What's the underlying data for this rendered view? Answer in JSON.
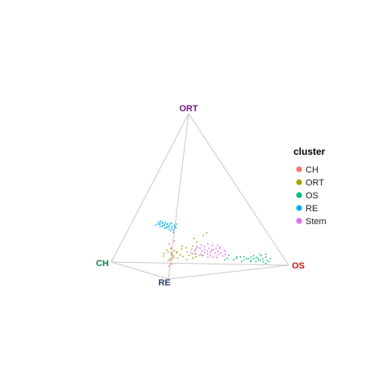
{
  "chart_data": {
    "type": "scatter",
    "plot_kind": "3D tetrahedron (quaternary) point cloud",
    "vertices": [
      {
        "name": "ORT",
        "color": "#6a1b7a"
      },
      {
        "name": "CH",
        "color": "#1a7a4a"
      },
      {
        "name": "OS",
        "color": "#cc1111"
      },
      {
        "name": "RE",
        "color": "#2b3d6e"
      }
    ],
    "legend": {
      "title": "cluster",
      "placement": "right",
      "items": [
        {
          "name": "CH",
          "color": "#F8766D"
        },
        {
          "name": "ORT",
          "color": "#A3A500"
        },
        {
          "name": "OS",
          "color": "#00BF7D"
        },
        {
          "name": "RE",
          "color": "#00B0F6"
        },
        {
          "name": "Stem",
          "color": "#E76BF3"
        }
      ]
    },
    "series": [
      {
        "name": "CH",
        "points": [
          [
            0.15,
            0.05,
            0.03,
            0.77
          ],
          [
            0.1,
            0.08,
            0.02,
            0.8
          ],
          [
            0.12,
            0.05,
            0.05,
            0.78
          ],
          [
            0.18,
            0.06,
            0.02,
            0.74
          ],
          [
            0.08,
            0.06,
            0.04,
            0.82
          ],
          [
            0.14,
            0.09,
            0.04,
            0.73
          ],
          [
            0.1,
            0.1,
            0.06,
            0.74
          ],
          [
            0.2,
            0.1,
            0.02,
            0.68
          ],
          [
            0.22,
            0.06,
            0.04,
            0.68
          ],
          [
            0.06,
            0.12,
            0.05,
            0.77
          ],
          [
            0.12,
            0.12,
            0.08,
            0.68
          ],
          [
            0.15,
            0.04,
            0.06,
            0.75
          ]
        ]
      },
      {
        "name": "ORT",
        "points": [
          [
            0.06,
            0.55,
            0.35,
            0.04
          ],
          [
            0.04,
            0.6,
            0.31,
            0.05
          ],
          [
            0.08,
            0.5,
            0.38,
            0.04
          ],
          [
            0.05,
            0.65,
            0.26,
            0.04
          ],
          [
            0.1,
            0.52,
            0.34,
            0.04
          ],
          [
            0.06,
            0.58,
            0.3,
            0.06
          ],
          [
            0.03,
            0.62,
            0.3,
            0.05
          ],
          [
            0.07,
            0.47,
            0.41,
            0.05
          ],
          [
            0.12,
            0.5,
            0.33,
            0.05
          ],
          [
            0.05,
            0.54,
            0.37,
            0.04
          ],
          [
            0.08,
            0.6,
            0.27,
            0.05
          ],
          [
            0.04,
            0.57,
            0.34,
            0.05
          ],
          [
            0.1,
            0.45,
            0.39,
            0.06
          ],
          [
            0.06,
            0.5,
            0.4,
            0.04
          ],
          [
            0.09,
            0.56,
            0.3,
            0.05
          ],
          [
            0.03,
            0.53,
            0.4,
            0.04
          ],
          [
            0.07,
            0.63,
            0.25,
            0.05
          ],
          [
            0.11,
            0.48,
            0.36,
            0.05
          ],
          [
            0.05,
            0.46,
            0.44,
            0.05
          ],
          [
            0.08,
            0.55,
            0.32,
            0.05
          ],
          [
            0.04,
            0.49,
            0.43,
            0.04
          ],
          [
            0.09,
            0.61,
            0.26,
            0.04
          ],
          [
            0.12,
            0.44,
            0.39,
            0.05
          ],
          [
            0.06,
            0.42,
            0.47,
            0.05
          ],
          [
            0.1,
            0.58,
            0.28,
            0.04
          ],
          [
            0.07,
            0.45,
            0.43,
            0.05
          ],
          [
            0.15,
            0.4,
            0.4,
            0.05
          ],
          [
            0.2,
            0.3,
            0.4,
            0.1
          ],
          [
            0.22,
            0.25,
            0.4,
            0.13
          ],
          [
            0.18,
            0.35,
            0.35,
            0.12
          ]
        ]
      },
      {
        "name": "OS",
        "points": [
          [
            0.05,
            0.05,
            0.8,
            0.1
          ],
          [
            0.04,
            0.08,
            0.78,
            0.1
          ],
          [
            0.06,
            0.04,
            0.82,
            0.08
          ],
          [
            0.03,
            0.06,
            0.81,
            0.1
          ],
          [
            0.08,
            0.05,
            0.77,
            0.1
          ],
          [
            0.05,
            0.1,
            0.75,
            0.1
          ],
          [
            0.04,
            0.12,
            0.74,
            0.1
          ],
          [
            0.06,
            0.08,
            0.76,
            0.1
          ],
          [
            0.03,
            0.1,
            0.77,
            0.1
          ],
          [
            0.07,
            0.06,
            0.79,
            0.08
          ],
          [
            0.05,
            0.14,
            0.71,
            0.1
          ],
          [
            0.04,
            0.16,
            0.7,
            0.1
          ],
          [
            0.06,
            0.15,
            0.69,
            0.1
          ],
          [
            0.03,
            0.18,
            0.69,
            0.1
          ],
          [
            0.05,
            0.2,
            0.65,
            0.1
          ],
          [
            0.04,
            0.22,
            0.64,
            0.1
          ],
          [
            0.06,
            0.19,
            0.65,
            0.1
          ],
          [
            0.05,
            0.25,
            0.6,
            0.1
          ],
          [
            0.04,
            0.27,
            0.59,
            0.1
          ],
          [
            0.07,
            0.23,
            0.6,
            0.1
          ],
          [
            0.03,
            0.04,
            0.85,
            0.08
          ],
          [
            0.05,
            0.02,
            0.85,
            0.08
          ],
          [
            0.08,
            0.03,
            0.81,
            0.08
          ],
          [
            0.02,
            0.05,
            0.83,
            0.1
          ],
          [
            0.06,
            0.11,
            0.73,
            0.1
          ],
          [
            0.04,
            0.07,
            0.79,
            0.1
          ],
          [
            0.05,
            0.13,
            0.72,
            0.1
          ],
          [
            0.07,
            0.09,
            0.74,
            0.1
          ],
          [
            0.03,
            0.13,
            0.74,
            0.1
          ],
          [
            0.06,
            0.17,
            0.67,
            0.1
          ],
          [
            0.05,
            0.09,
            0.78,
            0.08
          ],
          [
            0.04,
            0.03,
            0.83,
            0.1
          ]
        ]
      },
      {
        "name": "RE",
        "points": [
          [
            0.3,
            0.1,
            0.05,
            0.55
          ],
          [
            0.28,
            0.12,
            0.05,
            0.55
          ],
          [
            0.32,
            0.14,
            0.04,
            0.5
          ],
          [
            0.27,
            0.16,
            0.05,
            0.52
          ],
          [
            0.3,
            0.18,
            0.04,
            0.48
          ],
          [
            0.29,
            0.2,
            0.05,
            0.46
          ],
          [
            0.31,
            0.22,
            0.04,
            0.43
          ],
          [
            0.28,
            0.24,
            0.05,
            0.43
          ],
          [
            0.3,
            0.26,
            0.04,
            0.4
          ],
          [
            0.29,
            0.28,
            0.05,
            0.38
          ],
          [
            0.31,
            0.3,
            0.04,
            0.35
          ],
          [
            0.28,
            0.32,
            0.05,
            0.35
          ],
          [
            0.3,
            0.34,
            0.04,
            0.32
          ],
          [
            0.29,
            0.36,
            0.05,
            0.3
          ],
          [
            0.32,
            0.08,
            0.05,
            0.55
          ],
          [
            0.3,
            0.06,
            0.04,
            0.6
          ],
          [
            0.27,
            0.09,
            0.04,
            0.6
          ],
          [
            0.31,
            0.11,
            0.05,
            0.53
          ],
          [
            0.29,
            0.13,
            0.04,
            0.54
          ],
          [
            0.3,
            0.15,
            0.05,
            0.5
          ],
          [
            0.28,
            0.17,
            0.04,
            0.51
          ],
          [
            0.31,
            0.19,
            0.05,
            0.45
          ],
          [
            0.29,
            0.21,
            0.04,
            0.46
          ],
          [
            0.3,
            0.23,
            0.05,
            0.42
          ],
          [
            0.28,
            0.25,
            0.04,
            0.43
          ],
          [
            0.31,
            0.27,
            0.05,
            0.37
          ],
          [
            0.29,
            0.29,
            0.04,
            0.38
          ],
          [
            0.3,
            0.31,
            0.05,
            0.34
          ],
          [
            0.28,
            0.33,
            0.04,
            0.35
          ],
          [
            0.31,
            0.35,
            0.05,
            0.29
          ],
          [
            0.29,
            0.37,
            0.04,
            0.3
          ],
          [
            0.3,
            0.39,
            0.05,
            0.26
          ],
          [
            0.28,
            0.41,
            0.04,
            0.27
          ],
          [
            0.3,
            0.12,
            0.06,
            0.52
          ]
        ]
      },
      {
        "name": "Stem",
        "points": [
          [
            0.08,
            0.25,
            0.52,
            0.15
          ],
          [
            0.1,
            0.28,
            0.47,
            0.15
          ],
          [
            0.07,
            0.3,
            0.48,
            0.15
          ],
          [
            0.12,
            0.22,
            0.51,
            0.15
          ],
          [
            0.09,
            0.32,
            0.44,
            0.15
          ],
          [
            0.11,
            0.26,
            0.48,
            0.15
          ],
          [
            0.06,
            0.27,
            0.52,
            0.15
          ],
          [
            0.13,
            0.3,
            0.42,
            0.15
          ],
          [
            0.08,
            0.35,
            0.42,
            0.15
          ],
          [
            0.1,
            0.2,
            0.55,
            0.15
          ],
          [
            0.12,
            0.33,
            0.4,
            0.15
          ],
          [
            0.07,
            0.23,
            0.55,
            0.15
          ],
          [
            0.09,
            0.29,
            0.47,
            0.15
          ],
          [
            0.11,
            0.36,
            0.38,
            0.15
          ],
          [
            0.14,
            0.25,
            0.46,
            0.15
          ],
          [
            0.06,
            0.32,
            0.47,
            0.15
          ],
          [
            0.1,
            0.24,
            0.51,
            0.15
          ],
          [
            0.12,
            0.28,
            0.45,
            0.15
          ],
          [
            0.08,
            0.38,
            0.39,
            0.15
          ],
          [
            0.13,
            0.21,
            0.51,
            0.15
          ],
          [
            0.09,
            0.26,
            0.5,
            0.15
          ],
          [
            0.11,
            0.31,
            0.43,
            0.15
          ],
          [
            0.07,
            0.34,
            0.44,
            0.15
          ],
          [
            0.15,
            0.27,
            0.43,
            0.15
          ],
          [
            0.1,
            0.37,
            0.38,
            0.15
          ],
          [
            0.08,
            0.21,
            0.56,
            0.15
          ],
          [
            0.12,
            0.35,
            0.38,
            0.15
          ],
          [
            0.14,
            0.31,
            0.4,
            0.15
          ],
          [
            0.06,
            0.29,
            0.5,
            0.15
          ],
          [
            0.1,
            0.33,
            0.42,
            0.15
          ],
          [
            0.09,
            0.23,
            0.53,
            0.15
          ],
          [
            0.11,
            0.27,
            0.47,
            0.15
          ],
          [
            0.13,
            0.34,
            0.38,
            0.15
          ],
          [
            0.07,
            0.36,
            0.42,
            0.15
          ],
          [
            0.1,
            0.3,
            0.45,
            0.15
          ],
          [
            0.12,
            0.24,
            0.49,
            0.15
          ],
          [
            0.08,
            0.31,
            0.46,
            0.15
          ],
          [
            0.14,
            0.22,
            0.49,
            0.15
          ],
          [
            0.09,
            0.4,
            0.36,
            0.15
          ],
          [
            0.11,
            0.2,
            0.54,
            0.15
          ]
        ]
      }
    ]
  }
}
